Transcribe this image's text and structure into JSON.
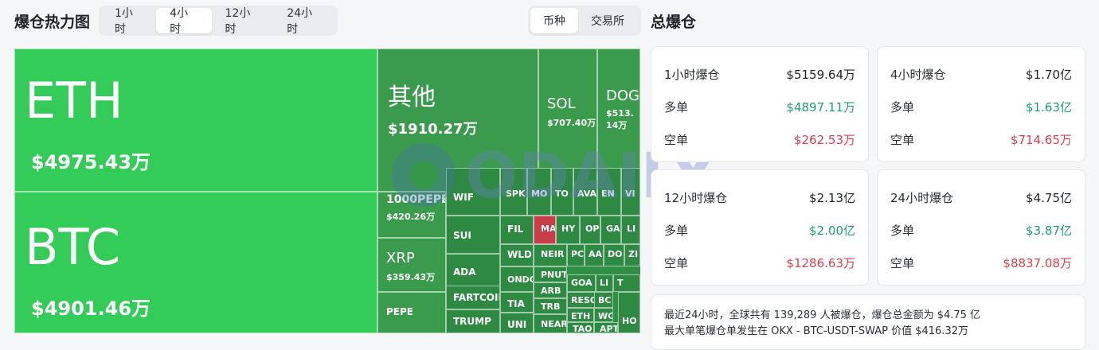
{
  "header": {
    "heatmap_title": "爆仓热力图",
    "time_tabs": [
      "1小时",
      "4小时",
      "12小时",
      "24小时"
    ],
    "active_time_tab": "4小时",
    "group_tabs": [
      "币种",
      "交易所"
    ],
    "active_group_tab": "币种",
    "summary_title": "总爆仓"
  },
  "treemap": {
    "tiles": [
      {
        "sym": "ETH",
        "amt": "$4975.43万"
      },
      {
        "sym": "BTC",
        "amt": "$4901.46万"
      },
      {
        "sym": "其他",
        "amt": "$1910.27万"
      },
      {
        "sym": "SOL",
        "amt": "$707.40万"
      },
      {
        "sym": "DOG",
        "amt": "$513.14万"
      },
      {
        "sym": "1000PEPE",
        "amt": "$420.26万"
      },
      {
        "sym": "XRP",
        "amt": "$359.43万"
      },
      {
        "sym": "PEPE",
        "amt": ""
      },
      {
        "sym": "WIF",
        "amt": ""
      },
      {
        "sym": "SUI",
        "amt": ""
      },
      {
        "sym": "ADA",
        "amt": ""
      },
      {
        "sym": "FARTCOIN",
        "amt": ""
      },
      {
        "sym": "TRUMP",
        "amt": ""
      },
      {
        "sym": "SPK",
        "amt": ""
      },
      {
        "sym": "MO",
        "amt": ""
      },
      {
        "sym": "TO",
        "amt": ""
      },
      {
        "sym": "AVA",
        "amt": ""
      },
      {
        "sym": "EN",
        "amt": ""
      },
      {
        "sym": "VI",
        "amt": ""
      },
      {
        "sym": "FIL",
        "amt": ""
      },
      {
        "sym": "MA",
        "amt": ""
      },
      {
        "sym": "HY",
        "amt": ""
      },
      {
        "sym": "OP",
        "amt": ""
      },
      {
        "sym": "GA",
        "amt": ""
      },
      {
        "sym": "LI",
        "amt": ""
      },
      {
        "sym": "WLD",
        "amt": ""
      },
      {
        "sym": "NEIR",
        "amt": ""
      },
      {
        "sym": "PC",
        "amt": ""
      },
      {
        "sym": "AA",
        "amt": ""
      },
      {
        "sym": "DO",
        "amt": ""
      },
      {
        "sym": "ZI",
        "amt": ""
      },
      {
        "sym": "ONDO",
        "amt": ""
      },
      {
        "sym": "PNUT",
        "amt": ""
      },
      {
        "sym": "GOA",
        "amt": ""
      },
      {
        "sym": "LI",
        "amt": ""
      },
      {
        "sym": "T",
        "amt": ""
      },
      {
        "sym": "TIA",
        "amt": ""
      },
      {
        "sym": "ARB",
        "amt": ""
      },
      {
        "sym": "RESO",
        "amt": ""
      },
      {
        "sym": "TRB",
        "amt": ""
      },
      {
        "sym": "ETH",
        "amt": ""
      },
      {
        "sym": "BC",
        "amt": ""
      },
      {
        "sym": "UNI",
        "amt": ""
      },
      {
        "sym": "NEAR",
        "amt": ""
      },
      {
        "sym": "TAO",
        "amt": ""
      },
      {
        "sym": "WC",
        "amt": ""
      },
      {
        "sym": "APT",
        "amt": ""
      },
      {
        "sym": "HO",
        "amt": ""
      }
    ]
  },
  "watermark": "ODAILY",
  "summary": {
    "cards": [
      {
        "title": "1小时爆仓",
        "total": "$5159.64万",
        "long_label": "多单",
        "long": "$4897.11万",
        "short_label": "空单",
        "short": "$262.53万"
      },
      {
        "title": "4小时爆仓",
        "total": "$1.70亿",
        "long_label": "多单",
        "long": "$1.63亿",
        "short_label": "空单",
        "short": "$714.65万"
      },
      {
        "title": "12小时爆仓",
        "total": "$2.13亿",
        "long_label": "多单",
        "long": "$2.00亿",
        "short_label": "空单",
        "short": "$1286.63万"
      },
      {
        "title": "24小时爆仓",
        "total": "$4.75亿",
        "long_label": "多单",
        "long": "$3.87亿",
        "short_label": "空单",
        "short": "$8837.08万"
      }
    ],
    "info_line1": "最近24小时，全球共有 139,289 人被爆仓，爆仓总金额为 $4.75 亿",
    "info_line2": "最大单笔爆仓单发生在 OKX - BTC-USDT-SWAP 价值 $416.32万"
  },
  "colors": {
    "bright_green": "#33cc59",
    "green": "#3a9b4c",
    "dark_green": "#2e8a42",
    "red_tile": "#c83d4a",
    "long": "#1aa36b",
    "short": "#e03c4a"
  }
}
